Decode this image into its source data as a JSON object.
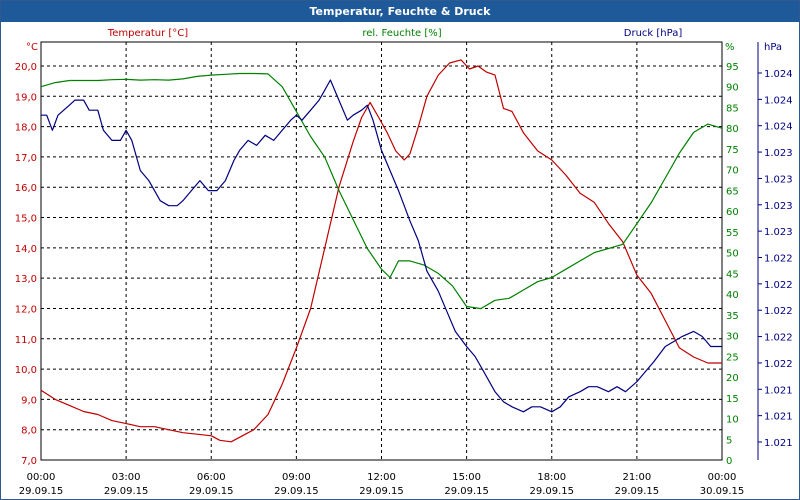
{
  "window": {
    "title": "Temperatur, Feuchte & Druck"
  },
  "chart_data": {
    "type": "line",
    "grid": true,
    "x_axis": {
      "ticks": [
        {
          "time": "00:00",
          "date": "29.09.15"
        },
        {
          "time": "03:00",
          "date": "29.09.15"
        },
        {
          "time": "06:00",
          "date": "29.09.15"
        },
        {
          "time": "09:00",
          "date": "29.09.15"
        },
        {
          "time": "12:00",
          "date": "29.09.15"
        },
        {
          "time": "15:00",
          "date": "29.09.15"
        },
        {
          "time": "18:00",
          "date": "29.09.15"
        },
        {
          "time": "21:00",
          "date": "29.09.15"
        },
        {
          "time": "00:00",
          "date": "30.09.15"
        }
      ],
      "range_hours": [
        0,
        24
      ]
    },
    "axes": {
      "temperature": {
        "label": "Temperatur [°C]",
        "unit": "°C",
        "range": [
          7.0,
          20.0
        ],
        "color": "#c00000",
        "ticks": [
          "7,0",
          "8,0",
          "9,0",
          "10,0",
          "11,0",
          "12,0",
          "13,0",
          "14,0",
          "15,0",
          "16,0",
          "17,0",
          "18,0",
          "19,0",
          "20,0"
        ]
      },
      "humidity": {
        "label": "rel. Feuchte [%]",
        "unit": "%",
        "range": [
          0,
          95
        ],
        "color": "#008000",
        "ticks": [
          "0",
          "5",
          "10",
          "15",
          "20",
          "25",
          "30",
          "35",
          "40",
          "45",
          "50",
          "55",
          "60",
          "65",
          "70",
          "75",
          "80",
          "85",
          "90",
          "95"
        ]
      },
      "pressure": {
        "label": "Druck [hPa]",
        "unit": "hPa",
        "color": "#000080",
        "ticks": [
          "1.021",
          "1.021",
          "1.021",
          "1.022",
          "1.022",
          "1.022",
          "1.022",
          "1.022",
          "1.023",
          "1.023",
          "1.023",
          "1.023",
          "1.024",
          "1.024",
          "1.024"
        ]
      }
    },
    "series": [
      {
        "name": "Temperatur [°C]",
        "axis": "temperature",
        "color": "#c00000",
        "points": [
          [
            0,
            9.3
          ],
          [
            0.5,
            9.0
          ],
          [
            1,
            8.8
          ],
          [
            1.5,
            8.6
          ],
          [
            2,
            8.5
          ],
          [
            2.5,
            8.3
          ],
          [
            3,
            8.2
          ],
          [
            3.5,
            8.1
          ],
          [
            4,
            8.1
          ],
          [
            4.5,
            8.0
          ],
          [
            5,
            7.9
          ],
          [
            5.5,
            7.85
          ],
          [
            6,
            7.8
          ],
          [
            6.3,
            7.65
          ],
          [
            6.7,
            7.6
          ],
          [
            7,
            7.75
          ],
          [
            7.5,
            8.0
          ],
          [
            8,
            8.5
          ],
          [
            8.5,
            9.5
          ],
          [
            9,
            10.7
          ],
          [
            9.5,
            12.0
          ],
          [
            10,
            14.0
          ],
          [
            10.5,
            16.0
          ],
          [
            11,
            17.5
          ],
          [
            11.3,
            18.3
          ],
          [
            11.6,
            18.8
          ],
          [
            11.9,
            18.3
          ],
          [
            12.2,
            17.8
          ],
          [
            12.5,
            17.2
          ],
          [
            12.8,
            16.9
          ],
          [
            13,
            17.1
          ],
          [
            13.3,
            18.0
          ],
          [
            13.6,
            19.0
          ],
          [
            14,
            19.7
          ],
          [
            14.4,
            20.1
          ],
          [
            14.8,
            20.2
          ],
          [
            15.1,
            19.9
          ],
          [
            15.4,
            20.0
          ],
          [
            15.7,
            19.8
          ],
          [
            16,
            19.7
          ],
          [
            16.3,
            18.6
          ],
          [
            16.6,
            18.5
          ],
          [
            17,
            17.8
          ],
          [
            17.5,
            17.2
          ],
          [
            18,
            16.9
          ],
          [
            18.5,
            16.4
          ],
          [
            19,
            15.8
          ],
          [
            19.5,
            15.5
          ],
          [
            20,
            14.8
          ],
          [
            20.5,
            14.2
          ],
          [
            21,
            13.1
          ],
          [
            21.5,
            12.5
          ],
          [
            22,
            11.6
          ],
          [
            22.5,
            10.7
          ],
          [
            23,
            10.4
          ],
          [
            23.5,
            10.2
          ],
          [
            24,
            10.2
          ]
        ]
      },
      {
        "name": "rel. Feuchte [%]",
        "axis": "humidity",
        "color": "#008000",
        "points": [
          [
            0,
            90
          ],
          [
            0.5,
            91
          ],
          [
            1,
            91.5
          ],
          [
            1.5,
            91.5
          ],
          [
            2,
            91.5
          ],
          [
            2.5,
            91.7
          ],
          [
            3,
            91.8
          ],
          [
            3.5,
            91.6
          ],
          [
            4,
            91.7
          ],
          [
            4.5,
            91.6
          ],
          [
            5,
            91.9
          ],
          [
            5.5,
            92.5
          ],
          [
            6,
            92.8
          ],
          [
            6.5,
            93
          ],
          [
            7,
            93.2
          ],
          [
            7.5,
            93.2
          ],
          [
            8,
            93.1
          ],
          [
            8.5,
            90
          ],
          [
            9,
            84
          ],
          [
            9.5,
            78
          ],
          [
            10,
            73
          ],
          [
            10.5,
            65
          ],
          [
            11,
            58
          ],
          [
            11.5,
            51
          ],
          [
            12,
            46
          ],
          [
            12.3,
            44
          ],
          [
            12.6,
            48
          ],
          [
            13,
            48
          ],
          [
            13.5,
            47
          ],
          [
            14,
            45
          ],
          [
            14.5,
            42
          ],
          [
            15,
            37
          ],
          [
            15.5,
            36.5
          ],
          [
            16,
            38.5
          ],
          [
            16.5,
            39
          ],
          [
            17,
            41
          ],
          [
            17.5,
            43
          ],
          [
            18,
            44
          ],
          [
            18.5,
            46
          ],
          [
            19,
            48
          ],
          [
            19.5,
            50
          ],
          [
            20,
            51
          ],
          [
            20.5,
            52
          ],
          [
            21,
            57
          ],
          [
            21.5,
            62
          ],
          [
            22,
            68
          ],
          [
            22.5,
            74
          ],
          [
            23,
            79
          ],
          [
            23.5,
            81
          ],
          [
            24,
            80
          ]
        ]
      },
      {
        "name": "Druck [hPa]",
        "axis": "pressure",
        "color": "#000080",
        "points": [
          [
            0,
            1024.25
          ],
          [
            0.2,
            1024.25
          ],
          [
            0.4,
            1024.1
          ],
          [
            0.6,
            1024.25
          ],
          [
            0.8,
            1024.3
          ],
          [
            1,
            1024.35
          ],
          [
            1.2,
            1024.4
          ],
          [
            1.5,
            1024.4
          ],
          [
            1.7,
            1024.3
          ],
          [
            2,
            1024.3
          ],
          [
            2.2,
            1024.1
          ],
          [
            2.5,
            1024.0
          ],
          [
            2.8,
            1024.0
          ],
          [
            3,
            1024.1
          ],
          [
            3.2,
            1024.0
          ],
          [
            3.5,
            1023.7
          ],
          [
            3.8,
            1023.6
          ],
          [
            4,
            1023.5
          ],
          [
            4.2,
            1023.4
          ],
          [
            4.5,
            1023.35
          ],
          [
            4.8,
            1023.35
          ],
          [
            5,
            1023.4
          ],
          [
            5.3,
            1023.5
          ],
          [
            5.6,
            1023.6
          ],
          [
            5.9,
            1023.5
          ],
          [
            6.2,
            1023.5
          ],
          [
            6.5,
            1023.6
          ],
          [
            6.8,
            1023.8
          ],
          [
            7,
            1023.9
          ],
          [
            7.3,
            1024.0
          ],
          [
            7.6,
            1023.95
          ],
          [
            7.9,
            1024.05
          ],
          [
            8.2,
            1024.0
          ],
          [
            8.5,
            1024.1
          ],
          [
            8.8,
            1024.2
          ],
          [
            9,
            1024.25
          ],
          [
            9.2,
            1024.2
          ],
          [
            9.5,
            1024.3
          ],
          [
            9.8,
            1024.4
          ],
          [
            10,
            1024.5
          ],
          [
            10.2,
            1024.6
          ],
          [
            10.5,
            1024.4
          ],
          [
            10.8,
            1024.2
          ],
          [
            11,
            1024.25
          ],
          [
            11.3,
            1024.3
          ],
          [
            11.5,
            1024.35
          ],
          [
            11.7,
            1024.2
          ],
          [
            12,
            1023.9
          ],
          [
            12.3,
            1023.7
          ],
          [
            12.6,
            1023.5
          ],
          [
            13,
            1023.2
          ],
          [
            13.3,
            1023.0
          ],
          [
            13.6,
            1022.7
          ],
          [
            14,
            1022.5
          ],
          [
            14.3,
            1022.3
          ],
          [
            14.6,
            1022.1
          ],
          [
            15,
            1021.95
          ],
          [
            15.3,
            1021.85
          ],
          [
            15.6,
            1021.7
          ],
          [
            16,
            1021.5
          ],
          [
            16.3,
            1021.4
          ],
          [
            16.6,
            1021.35
          ],
          [
            17,
            1021.3
          ],
          [
            17.3,
            1021.35
          ],
          [
            17.6,
            1021.35
          ],
          [
            18,
            1021.3
          ],
          [
            18.3,
            1021.35
          ],
          [
            18.6,
            1021.45
          ],
          [
            19,
            1021.5
          ],
          [
            19.3,
            1021.55
          ],
          [
            19.6,
            1021.55
          ],
          [
            20,
            1021.5
          ],
          [
            20.3,
            1021.55
          ],
          [
            20.6,
            1021.5
          ],
          [
            21,
            1021.6
          ],
          [
            21.3,
            1021.7
          ],
          [
            21.6,
            1021.8
          ],
          [
            22,
            1021.95
          ],
          [
            22.3,
            1022.0
          ],
          [
            22.6,
            1022.05
          ],
          [
            23,
            1022.1
          ],
          [
            23.3,
            1022.05
          ],
          [
            23.6,
            1021.95
          ],
          [
            24,
            1021.95
          ]
        ]
      }
    ]
  }
}
